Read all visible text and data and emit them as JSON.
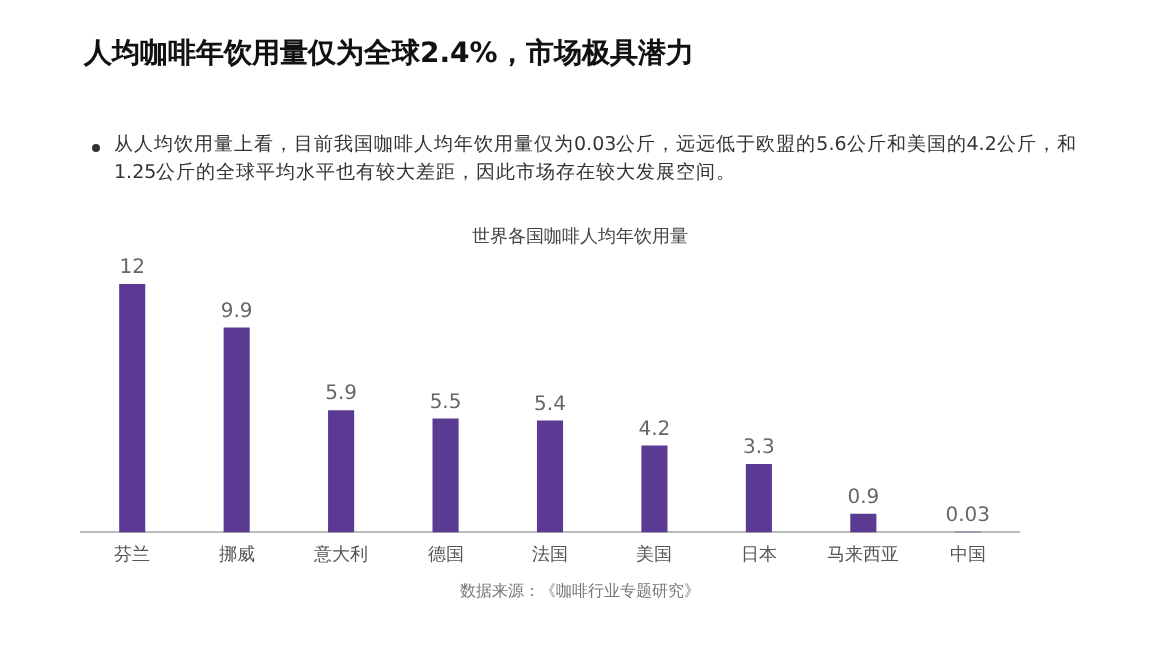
{
  "chart_data": {
    "type": "bar",
    "title": "人均咖啡年饮用量仅为全球2.4%，市场极具潜力",
    "subtitle": "从人均饮用量上看，目前我国咖啡人均年饮用量仅为0.03公斤，远远低于欧盟的5.6公斤和美国的4.2公斤，和1.25公斤的全球平均水平也有较大差距，因此市场存在较大发展空间。",
    "annotations": [
      "世界各国咖啡人均年饮用量",
      "数据来源：《咖啡行业专题研究》"
    ],
    "categories": [
      "芬兰",
      "挪威",
      "意大利",
      "德国",
      "法国",
      "美国",
      "日本",
      "马来西亚",
      "中国"
    ],
    "values": [
      12,
      9.9,
      5.9,
      5.5,
      5.4,
      4.2,
      3.3,
      0.9,
      0.03
    ],
    "color": "#5b3a93",
    "data_labels": true,
    "grid": false,
    "legend": false
  }
}
